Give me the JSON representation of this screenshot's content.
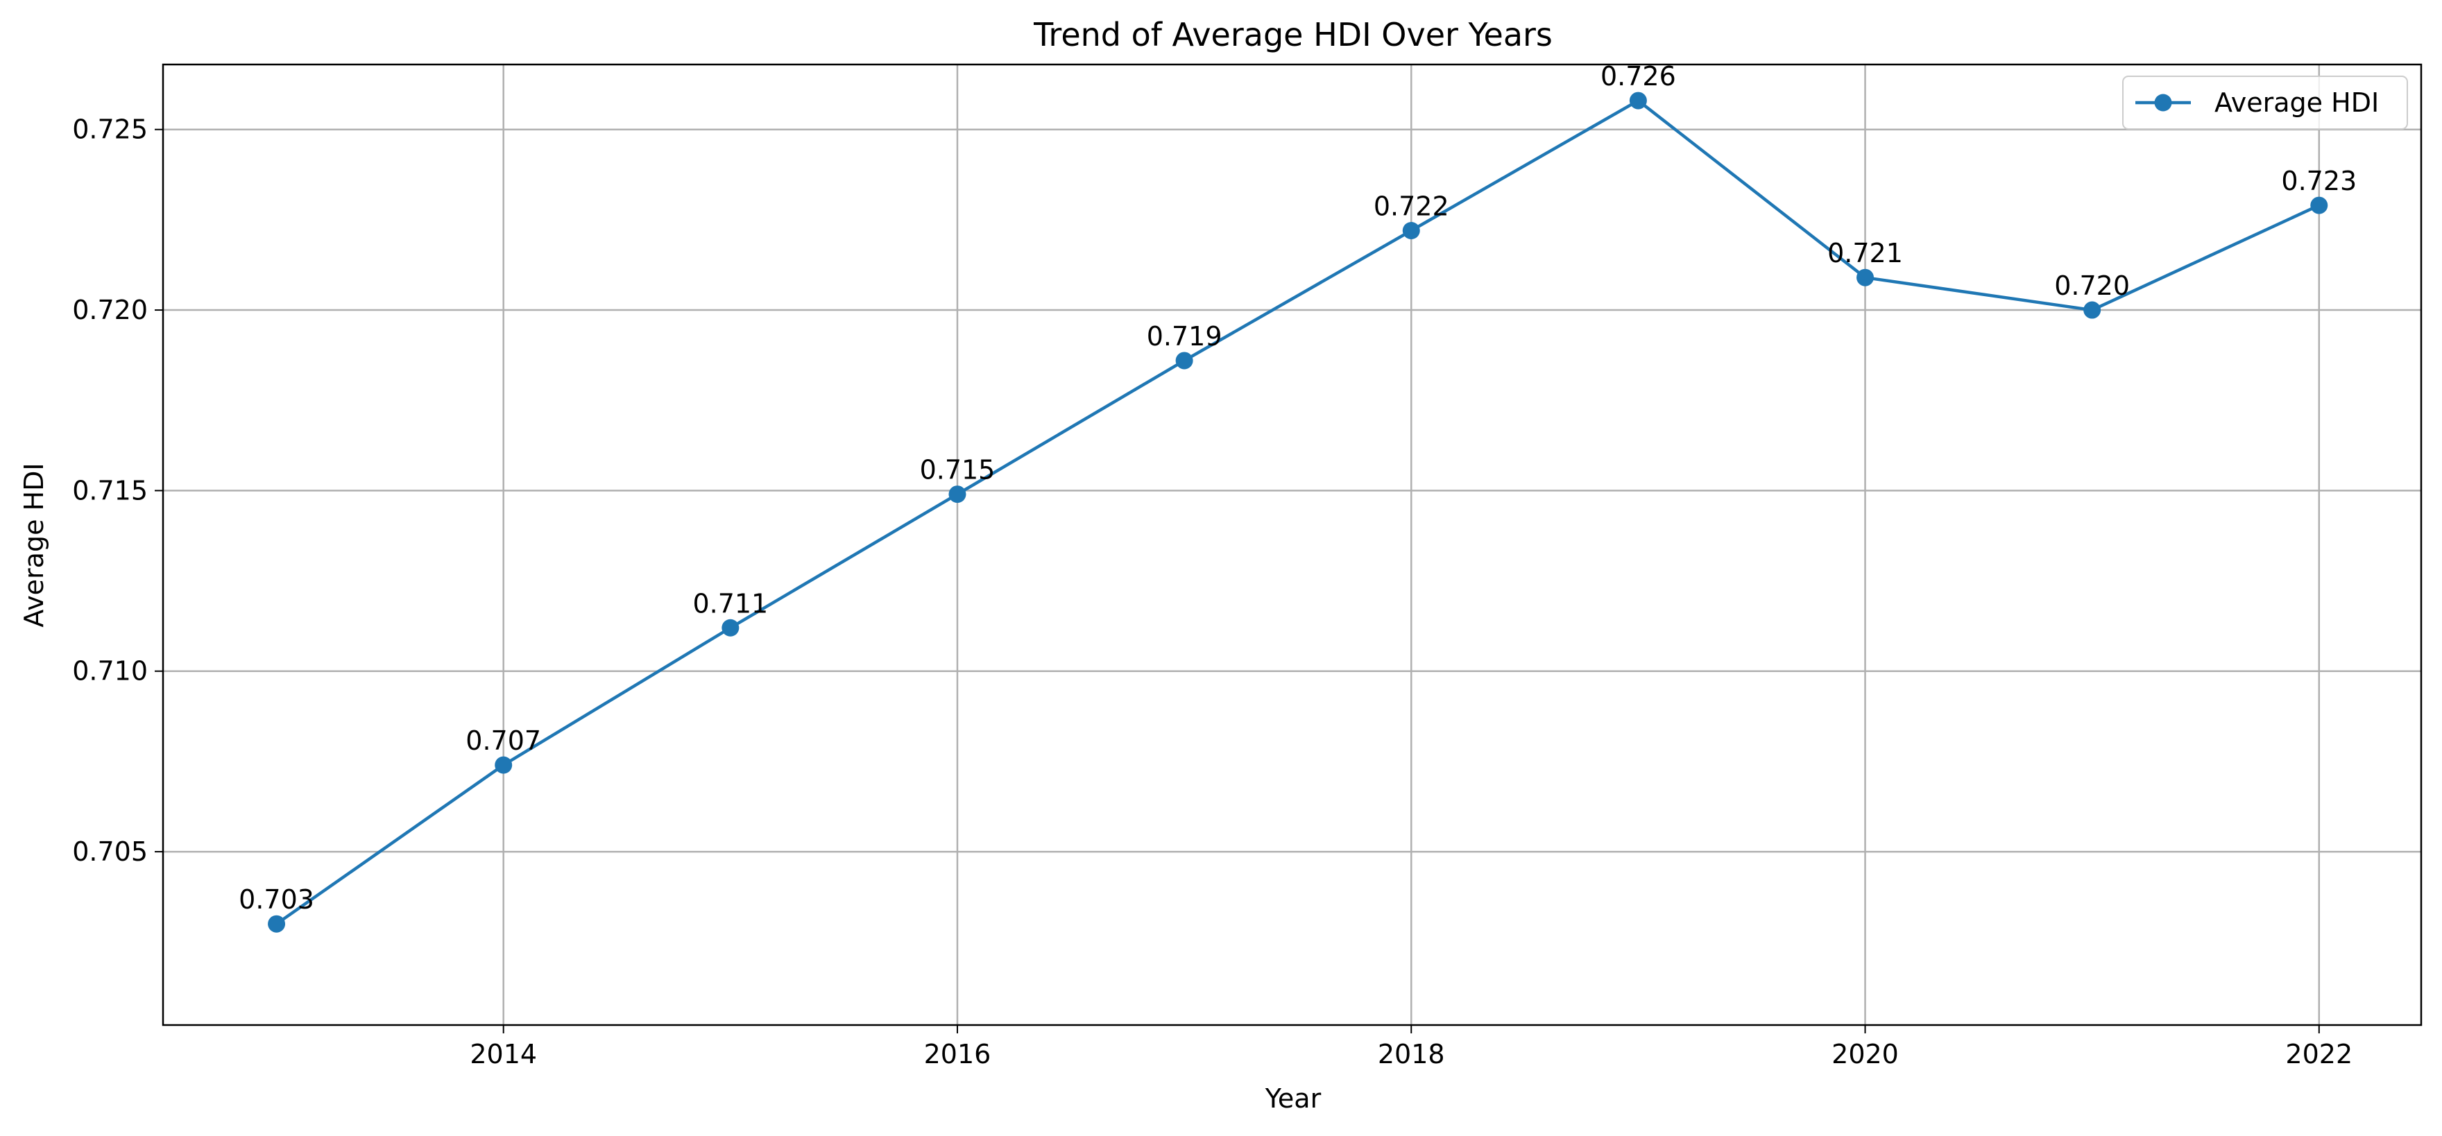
{
  "chart_data": {
    "type": "line",
    "title": "Trend of Average HDI Over Years",
    "xlabel": "Year",
    "ylabel": "Average HDI",
    "xlim": [
      2012.5,
      2022.45
    ],
    "ylim": [
      0.7002,
      0.7268
    ],
    "xticks": [
      2014,
      2016,
      2018,
      2020,
      2022
    ],
    "xtick_labels": [
      "2014",
      "2016",
      "2018",
      "2020",
      "2022"
    ],
    "yticks": [
      0.705,
      0.71,
      0.715,
      0.72,
      0.725
    ],
    "ytick_labels": [
      "0.705",
      "0.710",
      "0.715",
      "0.720",
      "0.725"
    ],
    "grid": true,
    "legend_position": "top-right",
    "series": [
      {
        "name": "Average HDI",
        "color": "#1f77b4",
        "marker": "circle",
        "x": [
          2013,
          2014,
          2015,
          2016,
          2017,
          2018,
          2019,
          2020,
          2021,
          2022
        ],
        "values": [
          0.703,
          0.7074,
          0.7112,
          0.7149,
          0.7186,
          0.7222,
          0.7258,
          0.7209,
          0.72,
          0.7229
        ],
        "data_labels": [
          "0.703",
          "0.707",
          "0.711",
          "0.715",
          "0.719",
          "0.722",
          "0.726",
          "0.721",
          "0.720",
          "0.723"
        ]
      }
    ]
  }
}
